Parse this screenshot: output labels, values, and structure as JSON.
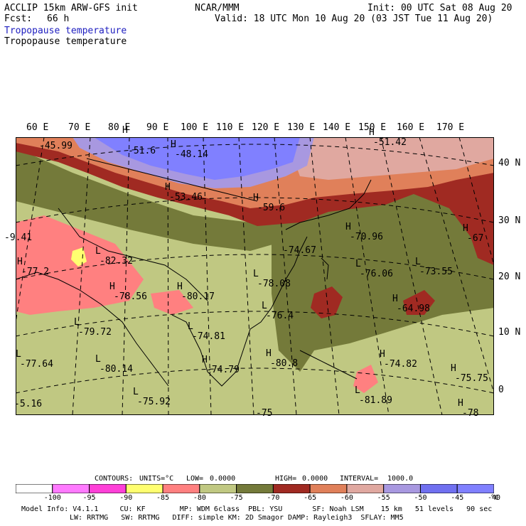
{
  "header": {
    "title": "ACCLIP 15km ARW-GFS init",
    "center": "NCAR/MMM",
    "init": "Init: 00 UTC Sat 08 Aug 20",
    "fcst_label": "Fcst:",
    "fcst_value": "66 h",
    "valid": "Valid: 18 UTC Mon 10 Aug 20 (03 JST Tue 11 Aug 20)",
    "field1": "Tropopause temperature",
    "field2": "Tropopause temperature"
  },
  "map": {
    "longitude_labels": [
      "60 E",
      "70 E",
      "80 E",
      "90 E",
      "100 E",
      "110 E",
      "120 E",
      "130 E",
      "140 E",
      "150 E",
      "160 E",
      "170 E"
    ],
    "latitude_labels": [
      "40 N",
      "30 N",
      "20 N",
      "10 N",
      "0"
    ],
    "annotations": [
      {
        "mark": "",
        "value": "-45.99"
      },
      {
        "mark": "H",
        "value": ""
      },
      {
        "mark": "",
        "value": "-51.6"
      },
      {
        "mark": "H",
        "value": "-48.14"
      },
      {
        "mark": "H",
        "value": "-51.42"
      },
      {
        "mark": "H",
        "value": "-53.46"
      },
      {
        "mark": "H",
        "value": "-59.6"
      },
      {
        "mark": "",
        "value": "-9.41"
      },
      {
        "mark": "H",
        "value": "-67"
      },
      {
        "mark": "H",
        "value": "-70.96"
      },
      {
        "mark": "H",
        "value": "-77.2"
      },
      {
        "mark": "L",
        "value": "-82.32"
      },
      {
        "mark": "",
        "value": "-74.67"
      },
      {
        "mark": "L",
        "value": "-76.06"
      },
      {
        "mark": "L",
        "value": "-73.55"
      },
      {
        "mark": "L",
        "value": "-78.08"
      },
      {
        "mark": "H",
        "value": "-78.56"
      },
      {
        "mark": "H",
        "value": "-80.17"
      },
      {
        "mark": "H",
        "value": "-64.98"
      },
      {
        "mark": "L",
        "value": "-76.4"
      },
      {
        "mark": "L",
        "value": "-79.72"
      },
      {
        "mark": "L",
        "value": "-74.81"
      },
      {
        "mark": "L",
        "value": "-77.64"
      },
      {
        "mark": "L",
        "value": "-80.14"
      },
      {
        "mark": "H",
        "value": "-74.79"
      },
      {
        "mark": "H",
        "value": "-80.8"
      },
      {
        "mark": "H",
        "value": "-74.82"
      },
      {
        "mark": "H",
        "value": "-75.75"
      },
      {
        "mark": "L",
        "value": "-81.89"
      },
      {
        "mark": "",
        "value": "-5.16"
      },
      {
        "mark": "L",
        "value": "-75.92"
      },
      {
        "mark": "",
        "value": "-75"
      },
      {
        "mark": "H",
        "value": "-78"
      }
    ]
  },
  "contours": {
    "contours_label": "CONTOURS:",
    "units": "UNITS=°C",
    "low_label": "LOW=",
    "low_value": "0.0000",
    "high_label": "HIGH=",
    "high_value": "0.0000",
    "interval_label": "INTERVAL=",
    "interval_value": "1000.0"
  },
  "legend": {
    "colors": [
      "#ffffff",
      "#ff7aff",
      "#ff40d8",
      "#ffff70",
      "#ff8080",
      "#c0c882",
      "#747a3a",
      "#a02a22",
      "#e0805a",
      "#e0a8a0",
      "#a898e0",
      "#7070f0",
      "#8080ff"
    ],
    "labels": [
      "-100",
      "-95",
      "-90",
      "-85",
      "-80",
      "-75",
      "-70",
      "-65",
      "-60",
      "-55",
      "-50",
      "-45",
      "-40"
    ],
    "unit": "°C"
  },
  "footer": {
    "line1": "Model Info: V4.1.1     CU: KF        MP: WDM 6class  PBL: YSU       SF: Noah LSM    15 km   51 levels   90 sec",
    "line2": "LW: RRTMG   SW: RRTMG   DIFF: simple KM: 2D Smagor DAMP: Rayleigh3  SFLAY: MM5"
  }
}
